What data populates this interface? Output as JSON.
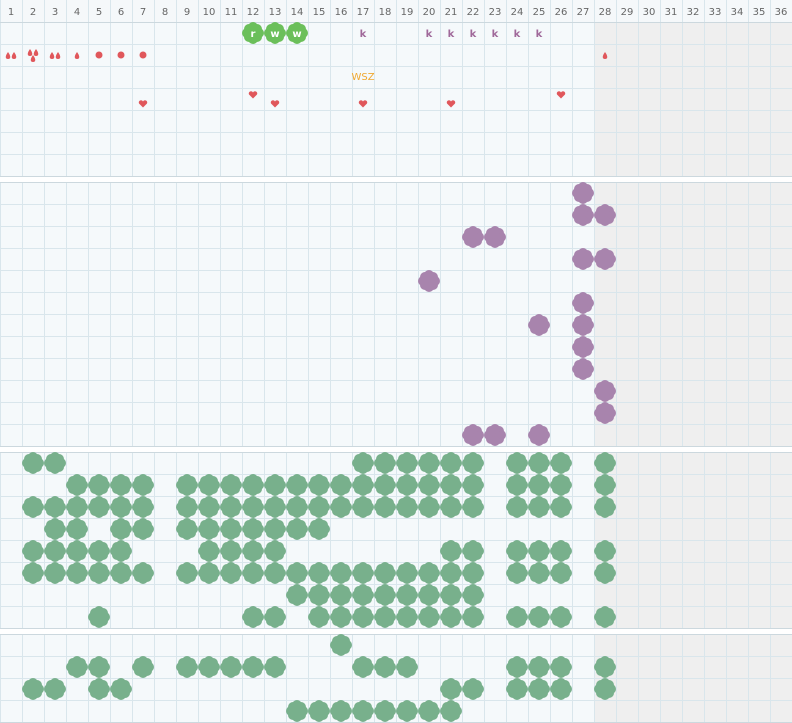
{
  "header": {
    "columns": [
      1,
      2,
      3,
      4,
      5,
      6,
      7,
      8,
      9,
      10,
      11,
      12,
      13,
      14,
      15,
      16,
      17,
      18,
      19,
      20,
      21,
      22,
      23,
      24,
      25,
      26,
      27,
      28,
      29,
      30,
      31,
      32,
      33,
      34,
      35,
      36
    ]
  },
  "top_row": {
    "letters": [
      "r",
      "w",
      "w",
      "k",
      "k",
      "k",
      "k",
      "k",
      "k",
      "k"
    ]
  },
  "note": "WSZ"
}
